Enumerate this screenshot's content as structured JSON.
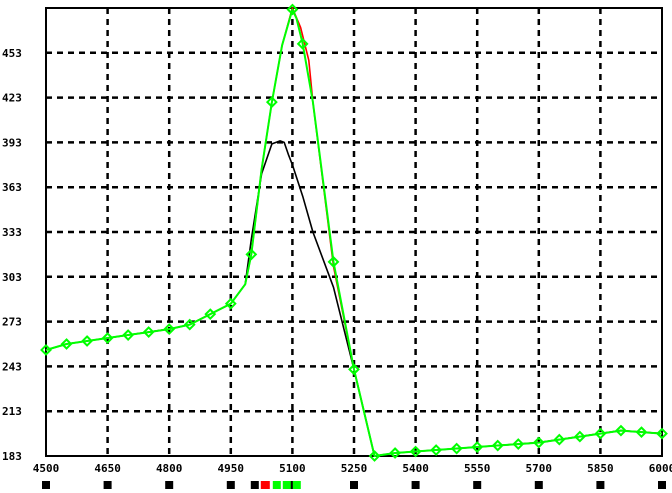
{
  "chart_data": {
    "type": "line",
    "title": "",
    "xlabel": "",
    "ylabel": "",
    "xlim": [
      4500,
      6000
    ],
    "ylim": [
      183,
      483
    ],
    "grid": true,
    "x_ticks": [
      4500,
      4650,
      4800,
      4950,
      5100,
      5250,
      5400,
      5550,
      5700,
      5850,
      6000
    ],
    "x_tick_labels": [
      "4500",
      "4650",
      "4800",
      "4950",
      "5100",
      "5250",
      "5400",
      "5550",
      "5700",
      "5850",
      "6000"
    ],
    "y_ticks": [
      183,
      213,
      243,
      273,
      303,
      333,
      363,
      393,
      423,
      453
    ],
    "y_tick_labels": [
      "183",
      "213",
      "243",
      "273",
      "303",
      "333",
      "363",
      "393",
      "423",
      "453"
    ],
    "series": [
      {
        "color": "#000000",
        "marker": "none",
        "x": [
          4500,
          4550,
          4600,
          4650,
          4700,
          4750,
          4800,
          4850,
          4900,
          4950,
          4985,
          5000,
          5025,
          5050,
          5070,
          5080,
          5090,
          5100,
          5125,
          5150,
          5200,
          5250,
          5300,
          5350,
          5400,
          5450,
          5500,
          5550,
          5600,
          5650,
          5700,
          5750,
          5800,
          5850,
          5900,
          5950,
          6000
        ],
        "y": [
          254,
          258,
          260,
          262,
          264,
          266,
          268,
          271,
          278,
          285,
          298,
          328,
          372,
          392,
          394,
          393,
          385,
          378,
          357,
          333,
          296,
          241,
          183,
          185,
          186,
          187,
          188,
          189,
          190,
          191,
          192,
          194,
          196,
          198,
          200,
          199,
          198
        ]
      },
      {
        "color": "#ff0000",
        "marker": "none",
        "x": [
          4500,
          4550,
          4600,
          4650,
          4700,
          4750,
          4800,
          4850,
          4900,
          4950,
          4985,
          5000,
          5025,
          5050,
          5075,
          5100,
          5120,
          5140,
          5150,
          5200,
          5250,
          5300,
          5350,
          5400,
          5450,
          5500,
          5550,
          5600,
          5650,
          5700,
          5750,
          5800,
          5850,
          5900,
          5950,
          6000
        ],
        "y": [
          254,
          258,
          260,
          262,
          264,
          266,
          268,
          271,
          278,
          285,
          298,
          318,
          375,
          420,
          458,
          483,
          470,
          448,
          420,
          310,
          241,
          183,
          185,
          186,
          187,
          188,
          189,
          190,
          191,
          192,
          194,
          196,
          198,
          200,
          199,
          198
        ]
      },
      {
        "color": "#00ff00",
        "marker": "diamond",
        "x": [
          4500,
          4550,
          4600,
          4650,
          4700,
          4750,
          4800,
          4850,
          4900,
          4950,
          4985,
          5000,
          5025,
          5050,
          5075,
          5100,
          5110,
          5125,
          5150,
          5200,
          5250,
          5300,
          5350,
          5400,
          5450,
          5500,
          5550,
          5600,
          5650,
          5700,
          5750,
          5800,
          5850,
          5900,
          5950,
          6000
        ],
        "y": [
          254,
          258,
          260,
          262,
          264,
          266,
          268,
          271,
          278,
          285,
          298,
          318,
          375,
          420,
          458,
          482,
          476,
          459,
          420,
          313,
          241,
          183,
          185,
          186,
          187,
          188,
          189,
          190,
          191,
          192,
          194,
          196,
          198,
          200,
          199,
          198
        ],
        "marker_indices": [
          0,
          1,
          2,
          3,
          4,
          5,
          6,
          7,
          8,
          9,
          11,
          13,
          15,
          17,
          19,
          20,
          21,
          22,
          23,
          24,
          25,
          26,
          27,
          28,
          29,
          30,
          31,
          32,
          33,
          34,
          35
        ]
      }
    ],
    "bottom_markers": [
      {
        "x": 4500,
        "color": "#000000"
      },
      {
        "x": 4650,
        "color": "#000000"
      },
      {
        "x": 4800,
        "color": "#000000"
      },
      {
        "x": 4950,
        "color": "#000000"
      },
      {
        "x": 5100,
        "color": "#000000"
      },
      {
        "x": 5250,
        "color": "#000000"
      },
      {
        "x": 5400,
        "color": "#000000"
      },
      {
        "x": 5550,
        "color": "#000000"
      },
      {
        "x": 5700,
        "color": "#000000"
      },
      {
        "x": 5850,
        "color": "#000000"
      },
      {
        "x": 6000,
        "color": "#000000"
      }
    ],
    "legend_swatches": [
      "#000000",
      "#ff0000",
      "#ff0000",
      "#00ff00",
      "#00ff00",
      "#00ff00"
    ]
  }
}
